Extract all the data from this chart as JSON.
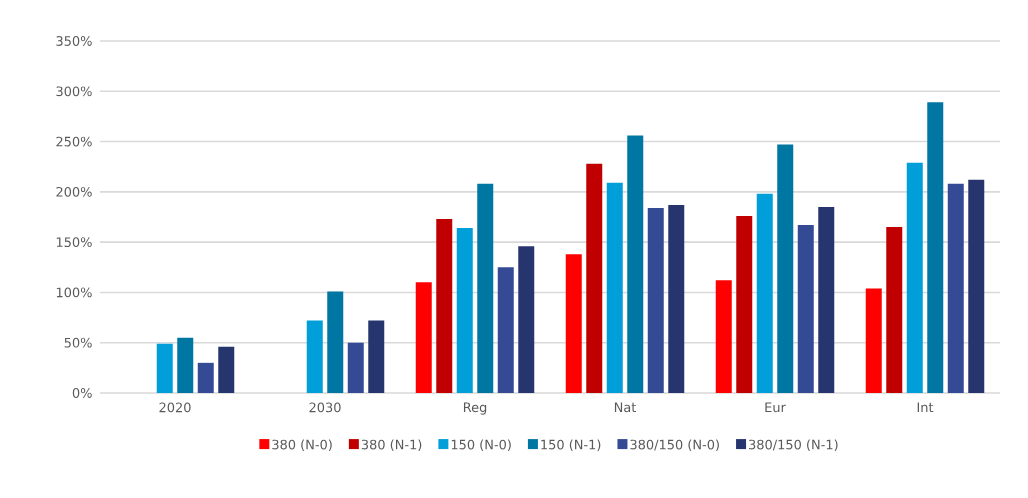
{
  "chart_data": {
    "type": "bar",
    "categories": [
      "2020",
      "2030",
      "Reg",
      "Nat",
      "Eur",
      "Int"
    ],
    "series": [
      {
        "name": "380 (N-0)",
        "color": "#ff0000",
        "values": [
          null,
          null,
          110,
          138,
          112,
          104
        ]
      },
      {
        "name": "380 (N-1)",
        "color": "#c00000",
        "values": [
          null,
          null,
          173,
          228,
          176,
          165
        ]
      },
      {
        "name": "150 (N-0)",
        "color": "#009fd9",
        "values": [
          49,
          72,
          164,
          209,
          198,
          229
        ]
      },
      {
        "name": "150 (N-1)",
        "color": "#0077a3",
        "values": [
          55,
          101,
          208,
          256,
          247,
          289
        ]
      },
      {
        "name": "380/150 (N-0)",
        "color": "#354a95",
        "values": [
          30,
          50,
          125,
          184,
          167,
          208
        ]
      },
      {
        "name": "380/150 (N-1)",
        "color": "#27356f",
        "values": [
          46,
          72,
          146,
          187,
          185,
          212
        ]
      }
    ],
    "ylim": [
      0,
      350
    ],
    "yticks": [
      {
        "value": 0,
        "label": "0%"
      },
      {
        "value": 50,
        "label": "50%"
      },
      {
        "value": 100,
        "label": "100%"
      },
      {
        "value": 150,
        "label": "150%"
      },
      {
        "value": 200,
        "label": "200%"
      },
      {
        "value": 250,
        "label": "250%"
      },
      {
        "value": 300,
        "label": "300%"
      },
      {
        "value": 350,
        "label": "350%"
      }
    ],
    "grid": "y",
    "legend": "bottom"
  }
}
